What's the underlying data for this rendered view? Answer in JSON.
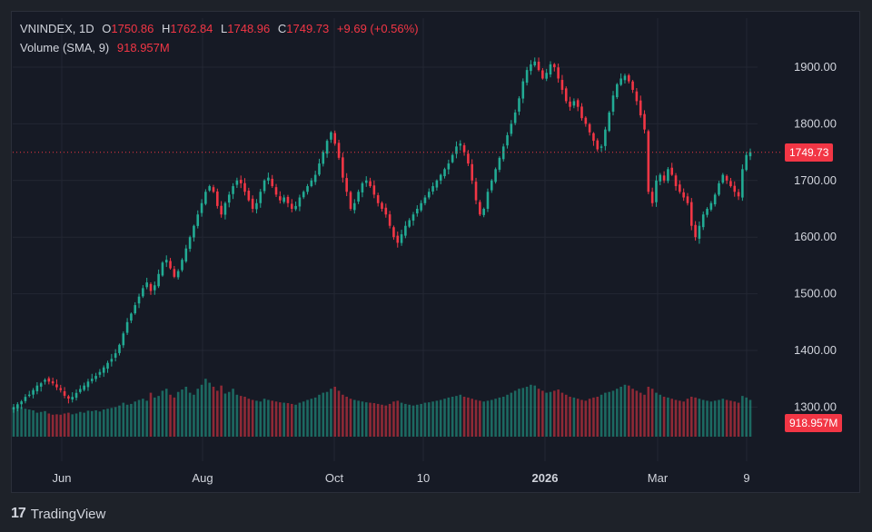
{
  "legend": {
    "symbol": "VNINDEX, 1D",
    "open_label": "O",
    "open": "1750.86",
    "high_label": "H",
    "high": "1762.84",
    "low_label": "L",
    "low": "1748.96",
    "close_label": "C",
    "close": "1749.73",
    "change": "+9.69 (+0.56%)",
    "volume_label": "Volume (SMA, 9)",
    "volume_value": "918.957M"
  },
  "footer": {
    "brand": "TradingView",
    "logo": "tv-logo-icon"
  },
  "colors": {
    "up": "#22ab94",
    "down": "#f23645",
    "background": "#161a25",
    "grid": "#232733",
    "text": "#d1d4dc"
  },
  "chart_data": {
    "type": "candlestick",
    "title": "",
    "x_tick_labels": [
      "Jun",
      "Aug",
      "Oct",
      "10",
      "2026",
      "Mar",
      "9"
    ],
    "y_ticks": [
      "1300.00",
      "1400.00",
      "1500.00",
      "1600.00",
      "1700.00",
      "1800.00",
      "1900.00"
    ],
    "ylim": [
      1240,
      1965
    ],
    "last_price_label": "1749.73",
    "last_volume_label": "918.957M",
    "close_series": [
      1300,
      1305,
      1310,
      1318,
      1322,
      1330,
      1338,
      1342,
      1348,
      1345,
      1342,
      1335,
      1330,
      1320,
      1315,
      1318,
      1325,
      1332,
      1338,
      1345,
      1350,
      1355,
      1362,
      1370,
      1378,
      1385,
      1395,
      1410,
      1430,
      1450,
      1465,
      1480,
      1495,
      1510,
      1520,
      1505,
      1515,
      1535,
      1555,
      1560,
      1545,
      1530,
      1540,
      1560,
      1580,
      1600,
      1620,
      1640,
      1660,
      1680,
      1690,
      1680,
      1655,
      1640,
      1660,
      1675,
      1690,
      1700,
      1695,
      1680,
      1665,
      1650,
      1660,
      1680,
      1700,
      1705,
      1690,
      1675,
      1665,
      1670,
      1660,
      1650,
      1655,
      1670,
      1680,
      1690,
      1700,
      1710,
      1730,
      1750,
      1770,
      1785,
      1765,
      1740,
      1705,
      1680,
      1650,
      1660,
      1680,
      1695,
      1700,
      1690,
      1675,
      1660,
      1650,
      1640,
      1620,
      1600,
      1590,
      1605,
      1620,
      1630,
      1640,
      1650,
      1660,
      1670,
      1680,
      1690,
      1700,
      1710,
      1720,
      1730,
      1745,
      1760,
      1765,
      1750,
      1730,
      1700,
      1665,
      1640,
      1650,
      1680,
      1700,
      1720,
      1740,
      1760,
      1780,
      1800,
      1820,
      1845,
      1875,
      1895,
      1905,
      1910,
      1895,
      1880,
      1890,
      1905,
      1900,
      1880,
      1860,
      1840,
      1830,
      1840,
      1830,
      1810,
      1800,
      1785,
      1770,
      1755,
      1760,
      1790,
      1820,
      1850,
      1870,
      1880,
      1885,
      1875,
      1860,
      1840,
      1815,
      1790,
      1680,
      1660,
      1700,
      1710,
      1700,
      1720,
      1710,
      1690,
      1680,
      1670,
      1660,
      1620,
      1600,
      1620,
      1640,
      1650,
      1660,
      1675,
      1695,
      1710,
      1700,
      1690,
      1680,
      1672,
      1720,
      1745,
      1750
    ],
    "volume_series": [
      0.72,
      0.78,
      0.74,
      0.7,
      0.68,
      0.66,
      0.6,
      0.62,
      0.64,
      0.58,
      0.55,
      0.56,
      0.55,
      0.58,
      0.6,
      0.56,
      0.58,
      0.62,
      0.6,
      0.65,
      0.64,
      0.66,
      0.63,
      0.68,
      0.7,
      0.72,
      0.74,
      0.78,
      0.85,
      0.8,
      0.82,
      0.88,
      0.92,
      0.95,
      0.9,
      1.1,
      0.98,
      1.02,
      1.15,
      1.2,
      1.05,
      0.98,
      1.12,
      1.18,
      1.25,
      1.1,
      1.05,
      1.2,
      1.3,
      1.45,
      1.35,
      1.25,
      1.15,
      1.28,
      1.08,
      1.12,
      1.2,
      1.05,
      1.02,
      1.0,
      0.95,
      0.92,
      0.9,
      0.88,
      0.95,
      0.92,
      0.9,
      0.88,
      0.86,
      0.85,
      0.84,
      0.82,
      0.8,
      0.85,
      0.88,
      0.92,
      0.95,
      0.98,
      1.05,
      1.1,
      1.12,
      1.2,
      1.25,
      1.15,
      1.05,
      1.0,
      0.95,
      0.92,
      0.9,
      0.88,
      0.86,
      0.85,
      0.84,
      0.82,
      0.8,
      0.78,
      0.82,
      0.88,
      0.9,
      0.85,
      0.82,
      0.8,
      0.78,
      0.8,
      0.82,
      0.85,
      0.86,
      0.88,
      0.9,
      0.92,
      0.95,
      0.98,
      1.0,
      1.02,
      1.05,
      1.0,
      0.98,
      0.95,
      0.92,
      0.9,
      0.88,
      0.9,
      0.92,
      0.95,
      0.98,
      1.0,
      1.05,
      1.1,
      1.15,
      1.2,
      1.22,
      1.25,
      1.3,
      1.28,
      1.2,
      1.15,
      1.1,
      1.12,
      1.15,
      1.18,
      1.1,
      1.05,
      1.0,
      0.98,
      0.95,
      0.92,
      0.9,
      0.95,
      0.98,
      1.0,
      1.05,
      1.1,
      1.12,
      1.15,
      1.2,
      1.25,
      1.3,
      1.28,
      1.2,
      1.15,
      1.1,
      1.05,
      1.25,
      1.2,
      1.1,
      1.05,
      1.0,
      0.98,
      0.95,
      0.92,
      0.9,
      0.88,
      0.95,
      1.0,
      0.98,
      0.95,
      0.92,
      0.9,
      0.88,
      0.9,
      0.92,
      0.95,
      0.92,
      0.9,
      0.88,
      0.85,
      1.02,
      0.98,
      0.92
    ]
  }
}
